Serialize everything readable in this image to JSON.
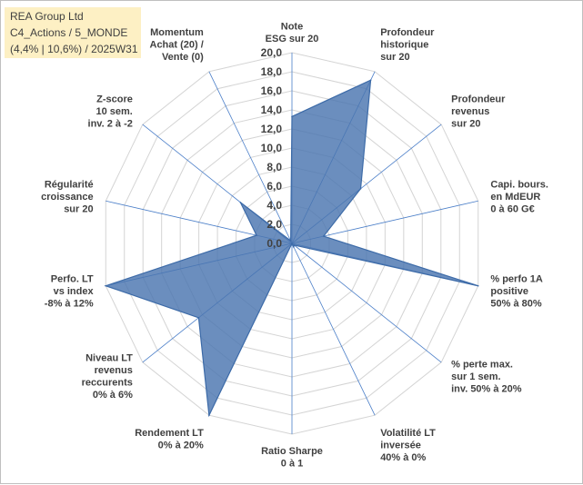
{
  "title_lines": [
    "REA Group Ltd",
    "C4_Actions / 5_MONDE",
    "(4,4% | 10,6%) / 2025W31"
  ],
  "colors": {
    "fill": "#4a75b0",
    "stroke": "#3d6ba8",
    "grid": "#d4d4d4",
    "spoke": "#4a7ec8",
    "title_bg": "#fdf0c4"
  },
  "chart_data": {
    "type": "radar",
    "range": [
      0,
      20
    ],
    "ticks": [
      "0,0",
      "2,0",
      "4,0",
      "6,0",
      "8,0",
      "10,0",
      "12,0",
      "14,0",
      "16,0",
      "18,0",
      "20,0"
    ],
    "axes": [
      {
        "lines": [
          "Note",
          "ESG sur 20"
        ],
        "value": 13.3
      },
      {
        "lines": [
          "Profondeur",
          "historique",
          "sur 20"
        ],
        "value": 19.0
      },
      {
        "lines": [
          "Profondeur",
          "revenus",
          "sur 20"
        ],
        "value": 9.2
      },
      {
        "lines": [
          "Capi. bours.",
          "en MdEUR",
          "0 à 60 G€"
        ],
        "value": 3.4
      },
      {
        "lines": [
          "% perfo 1A",
          "positive",
          "50% à 80%"
        ],
        "value": 20.0
      },
      {
        "lines": [
          "% perte max.",
          "sur 1 sem.",
          "inv. 50% à 20%"
        ],
        "value": 0.3
      },
      {
        "lines": [
          "Volatilité LT",
          "inversée",
          "40% à 0%"
        ],
        "value": 0.4
      },
      {
        "lines": [
          "Ratio Sharpe",
          "0 à 1"
        ],
        "value": 0.0
      },
      {
        "lines": [
          "Rendement LT",
          "0% à 20%"
        ],
        "value": 20.0
      },
      {
        "lines": [
          "Niveau LT",
          "revenus",
          "reccurents",
          "0% à 6%"
        ],
        "value": 12.5
      },
      {
        "lines": [
          "Perfo. LT",
          "vs index",
          "-8% à 12%"
        ],
        "value": 20.0
      },
      {
        "lines": [
          "Régularité",
          "croissance",
          "sur 20"
        ],
        "value": 3.8
      },
      {
        "lines": [
          "Z-score",
          "10 sem.",
          "inv. 2 à -2"
        ],
        "value": 6.9
      },
      {
        "lines": [
          "Momentum",
          "Achat (20) /",
          "Vente (0)"
        ],
        "value": 0.3
      }
    ]
  }
}
